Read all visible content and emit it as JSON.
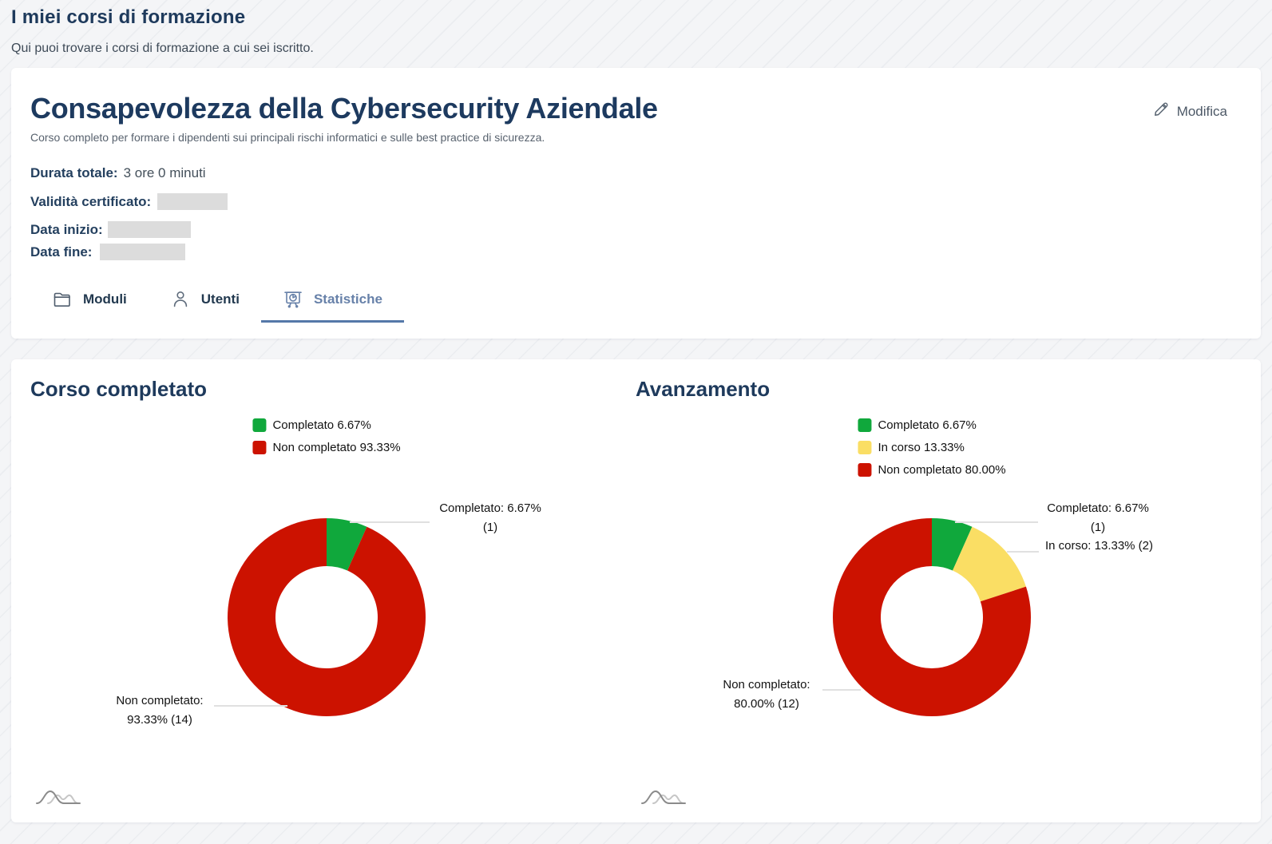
{
  "page": {
    "title": "I miei corsi di formazione",
    "subtitle": "Qui puoi trovare i corsi di formazione a cui sei iscritto."
  },
  "course_card": {
    "title": "Consapevolezza della Cybersecurity Aziendale",
    "description": "Corso completo per formare i dipendenti sui principali rischi informatici e sulle best practice di sicurezza.",
    "edit_label": "Modifica",
    "meta": {
      "duration_label": "Durata totale:",
      "duration_value": "3 ore 0 minuti",
      "certificate_label": "Validità certificato:",
      "start_date_label": "Data inizio:",
      "end_date_label": "Data fine:"
    },
    "tabs": [
      {
        "label": "Moduli",
        "icon": "folder-icon",
        "active": false
      },
      {
        "label": "Utenti",
        "icon": "user-icon",
        "active": false
      },
      {
        "label": "Statistiche",
        "icon": "presentation-chart-icon",
        "active": true
      }
    ]
  },
  "colors": {
    "completed_green": "#10a83c",
    "in_progress_yellow": "#fade64",
    "not_completed_red": "#cc1200",
    "active_tab_blue": "#5578a9",
    "heading_navy": "#1e3a5c"
  },
  "icons": {
    "edit": "pencil-icon",
    "chart_corner": "bell-curves-icon"
  },
  "chart_data": [
    {
      "type": "donut",
      "title": "Corso completato",
      "hole_ratio": 0.52,
      "legend_position": "top-center",
      "slices": [
        {
          "label": "Completato",
          "value": 6.67,
          "count": 1,
          "color": "#10a83c",
          "legend_text": "Completato 6.67%",
          "callout_lines": [
            "Completato: 6.67%",
            "(1)"
          ]
        },
        {
          "label": "Non completato",
          "value": 93.33,
          "count": 14,
          "color": "#cc1200",
          "legend_text": "Non completato 93.33%",
          "callout_lines": [
            "Non completato:",
            "93.33% (14)"
          ]
        }
      ]
    },
    {
      "type": "donut",
      "title": "Avanzamento",
      "hole_ratio": 0.52,
      "legend_position": "top-center",
      "slices": [
        {
          "label": "Completato",
          "value": 6.67,
          "count": 1,
          "color": "#10a83c",
          "legend_text": "Completato 6.67%",
          "callout_lines": [
            "Completato: 6.67%",
            "(1)"
          ]
        },
        {
          "label": "In corso",
          "value": 13.33,
          "count": 2,
          "color": "#fade64",
          "legend_text": "In corso 13.33%",
          "callout_lines": [
            "In corso: 13.33% (2)"
          ]
        },
        {
          "label": "Non completato",
          "value": 80.0,
          "count": 12,
          "color": "#cc1200",
          "legend_text": "Non completato 80.00%",
          "callout_lines": [
            "Non completato:",
            "80.00% (12)"
          ]
        }
      ]
    }
  ]
}
